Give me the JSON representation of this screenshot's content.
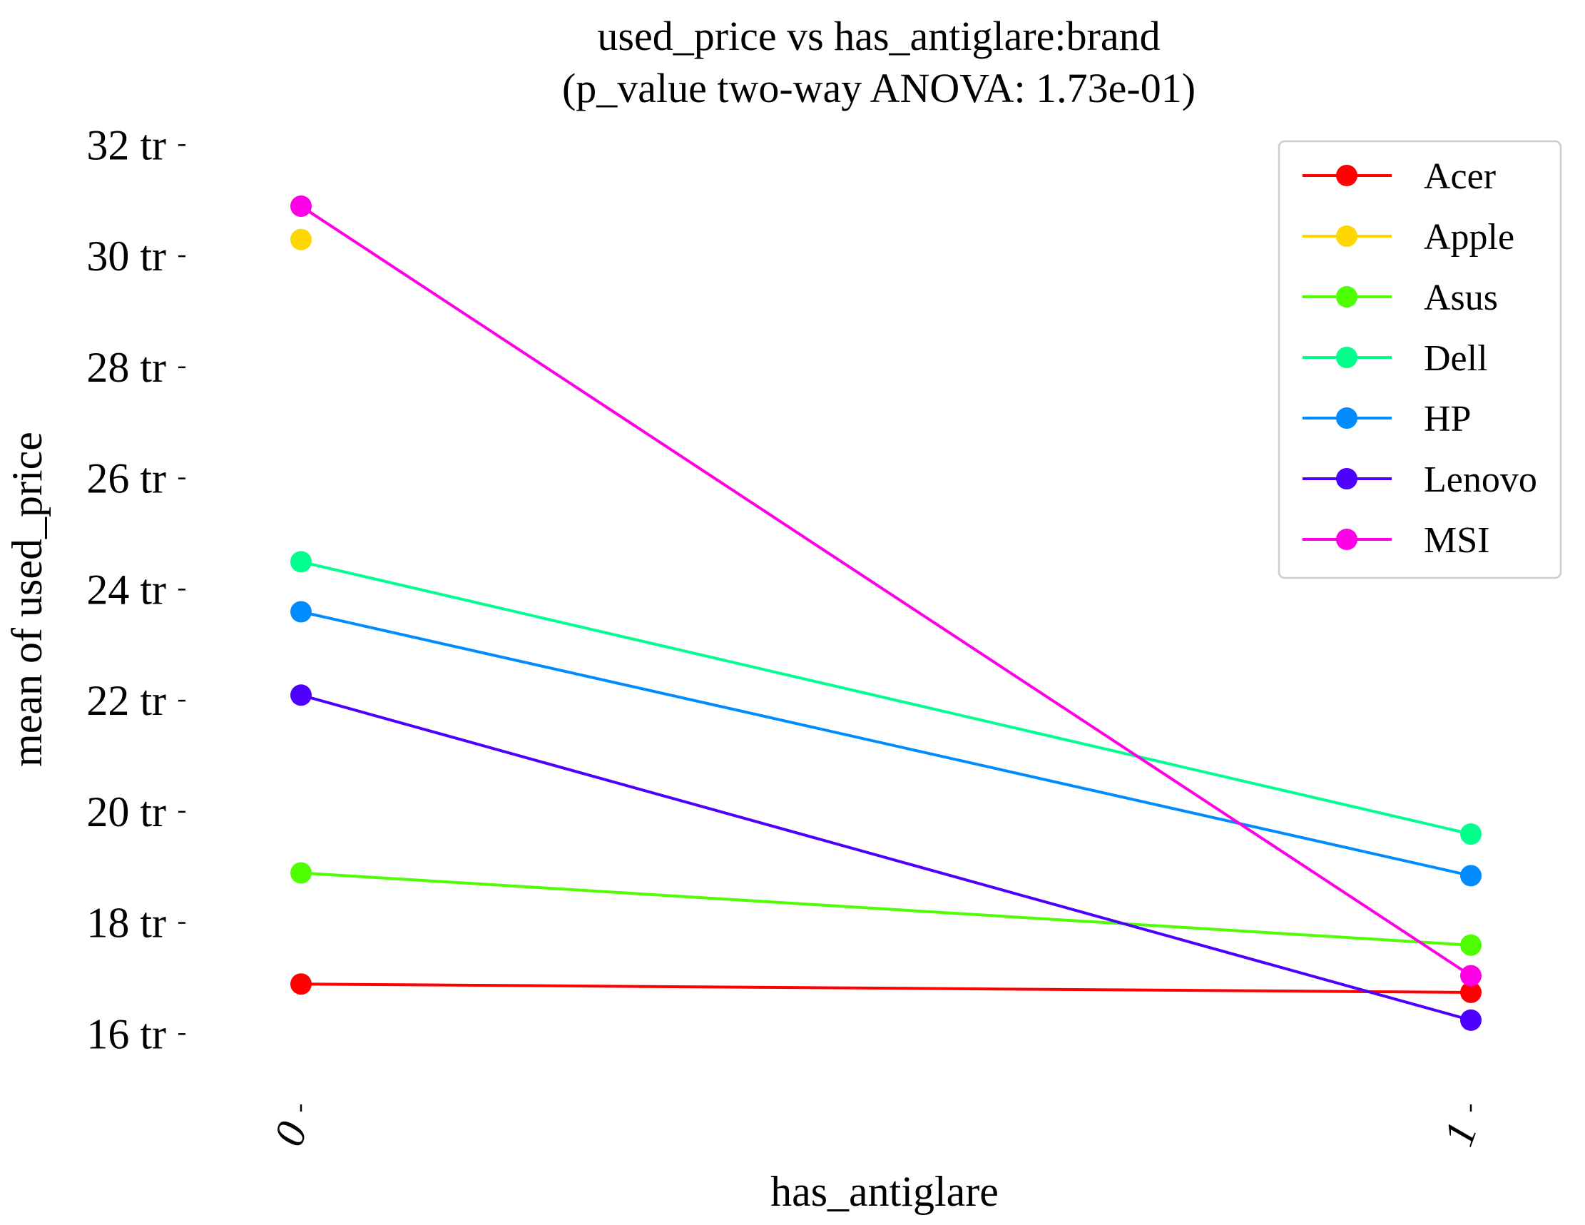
{
  "chart_data": {
    "type": "line",
    "title_line1": "used_price vs has_antiglare:brand",
    "title_line2": "(p_value two-way ANOVA: 1.73e-01)",
    "xlabel": "has_antiglare",
    "ylabel": "mean of used_price",
    "categories": [
      "0",
      "1"
    ],
    "y_ticks": [
      {
        "value": 16,
        "label": "16 tr"
      },
      {
        "value": 18,
        "label": "18 tr"
      },
      {
        "value": 20,
        "label": "20 tr"
      },
      {
        "value": 22,
        "label": "22 tr"
      },
      {
        "value": 24,
        "label": "24 tr"
      },
      {
        "value": 26,
        "label": "26 tr"
      },
      {
        "value": 28,
        "label": "28 tr"
      },
      {
        "value": 30,
        "label": "30 tr"
      },
      {
        "value": 32,
        "label": "32 tr"
      }
    ],
    "ylim": [
      14.9,
      32.3
    ],
    "legend_position": "upper right",
    "series": [
      {
        "name": "Acer",
        "color": "#ff0000",
        "values": [
          16.9,
          16.75
        ]
      },
      {
        "name": "Apple",
        "color": "#ffd700",
        "values": [
          30.3,
          null
        ]
      },
      {
        "name": "Asus",
        "color": "#4dff00",
        "values": [
          18.9,
          17.6
        ]
      },
      {
        "name": "Dell",
        "color": "#00ff8c",
        "values": [
          24.5,
          19.6
        ]
      },
      {
        "name": "HP",
        "color": "#008cff",
        "values": [
          23.6,
          18.85
        ]
      },
      {
        "name": "Lenovo",
        "color": "#4d00ff",
        "values": [
          22.1,
          16.25
        ]
      },
      {
        "name": "MSI",
        "color": "#ff00e6",
        "values": [
          30.9,
          17.05
        ]
      }
    ]
  }
}
